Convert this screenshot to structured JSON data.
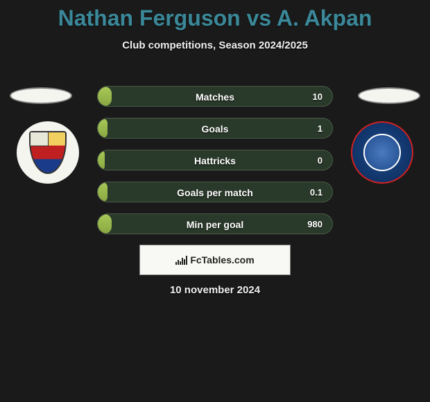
{
  "title": "Nathan Ferguson vs A. Akpan",
  "subtitle": "Club competitions, Season 2024/2025",
  "date": "10 november 2024",
  "brand": "FcTables.com",
  "colors": {
    "title_color": "#3a8899",
    "background": "#1a1a1a",
    "bar_fill_top": "#a8c858",
    "bar_fill_bottom": "#8aa840",
    "bar_bg": "#2a3a2a",
    "oval_bg": "#f5f5f0",
    "crest_right_bg": "#1e4a8a",
    "crest_right_border": "#d02020"
  },
  "bars": [
    {
      "label": "Matches",
      "value": "10",
      "fill_pct": 6
    },
    {
      "label": "Goals",
      "value": "1",
      "fill_pct": 4
    },
    {
      "label": "Hattricks",
      "value": "0",
      "fill_pct": 3
    },
    {
      "label": "Goals per match",
      "value": "0.1",
      "fill_pct": 4
    },
    {
      "label": "Min per goal",
      "value": "980",
      "fill_pct": 6
    }
  ]
}
